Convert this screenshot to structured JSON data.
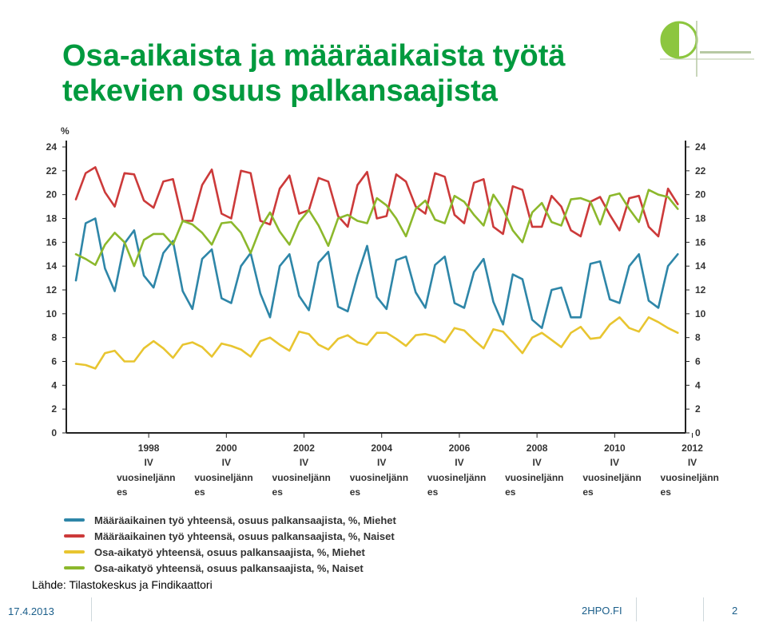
{
  "title_lines": [
    "Osa-aikaista ja määräaikaista työtä",
    "tekevien osuus palkansaajista"
  ],
  "source": "Lähde: Tilastokeskus ja Findikaattori",
  "footer": {
    "date": "17.4.2013",
    "site": "2HPO.FI",
    "page": "2"
  },
  "colors": {
    "title": "#009a3e",
    "blue": "#2e86a8",
    "red": "#cc3a3a",
    "yellow": "#e8c530",
    "green": "#8cb82c"
  },
  "chart_data": {
    "type": "line",
    "ylabel": "%",
    "ylim": [
      0,
      24
    ],
    "yticks": [
      0,
      2,
      4,
      6,
      8,
      10,
      12,
      14,
      16,
      18,
      20,
      22,
      24
    ],
    "grid": false,
    "x_tick_labels": [
      [
        "1998",
        "IV",
        "vuosineljänn",
        "es"
      ],
      [
        "2000",
        "IV",
        "vuosineljänn",
        "es"
      ],
      [
        "2002",
        "IV",
        "vuosineljänn",
        "es"
      ],
      [
        "2004",
        "IV",
        "vuosineljänn",
        "es"
      ],
      [
        "2006",
        "IV",
        "vuosineljänn",
        "es"
      ],
      [
        "2008",
        "IV",
        "vuosineljänn",
        "es"
      ],
      [
        "2010",
        "IV",
        "vuosineljänn",
        "es"
      ],
      [
        "2012",
        "IV",
        "vuosineljänn",
        "es"
      ]
    ],
    "x_tick_positions": [
      8,
      16,
      24,
      32,
      40,
      48,
      56,
      64
    ],
    "series": [
      {
        "name": "Määräaikainen työ yhteensä, osuus palkansaajista, %, Miehet",
        "color": "#2e86a8",
        "values": [
          12.8,
          17.6,
          18.0,
          13.8,
          11.9,
          15.9,
          17.0,
          13.2,
          12.2,
          15.1,
          16.1,
          11.9,
          10.4,
          14.6,
          15.4,
          11.3,
          10.9,
          14.0,
          15.1,
          11.7,
          9.7,
          14.0,
          15.0,
          11.5,
          10.3,
          14.3,
          15.2,
          10.6,
          10.2,
          13.2,
          15.7,
          11.4,
          10.4,
          14.5,
          14.8,
          11.8,
          10.5,
          14.1,
          14.8,
          10.9,
          10.5,
          13.5,
          14.6,
          11.0,
          9.1,
          13.3,
          12.9,
          9.5,
          8.8,
          12.0,
          12.2,
          9.7,
          9.7,
          14.2,
          14.4,
          11.2,
          10.9,
          14.0,
          15.0,
          11.1,
          10.5,
          14.0,
          15.0
        ]
      },
      {
        "name": "Määräaikainen työ yhteensä, osuus palkansaajista, %, Naiset",
        "color": "#cc3a3a",
        "values": [
          19.6,
          21.8,
          22.3,
          20.2,
          19.0,
          21.8,
          21.7,
          19.5,
          18.9,
          21.1,
          21.3,
          17.8,
          17.8,
          20.8,
          22.1,
          18.4,
          18.0,
          22.0,
          21.8,
          17.8,
          17.5,
          20.5,
          21.6,
          18.4,
          18.7,
          21.4,
          21.1,
          18.2,
          17.3,
          20.8,
          21.9,
          18.0,
          18.2,
          21.7,
          21.1,
          19.0,
          18.4,
          21.8,
          21.5,
          18.3,
          17.6,
          21.0,
          21.3,
          17.3,
          16.7,
          20.7,
          20.4,
          17.3,
          17.3,
          19.9,
          19.0,
          17.0,
          16.5,
          19.4,
          19.8,
          18.3,
          17.0,
          19.7,
          19.9,
          17.3,
          16.5,
          20.5,
          19.2
        ]
      },
      {
        "name": "Osa-aikatyö yhteensä, osuus palkansaajista, %, Miehet",
        "color": "#e8c530",
        "values": [
          5.8,
          5.7,
          5.4,
          6.7,
          6.9,
          6.0,
          6.0,
          7.1,
          7.7,
          7.1,
          6.3,
          7.4,
          7.6,
          7.2,
          6.4,
          7.5,
          7.3,
          7.0,
          6.4,
          7.7,
          8.0,
          7.4,
          6.9,
          8.5,
          8.3,
          7.4,
          7.0,
          7.9,
          8.2,
          7.6,
          7.4,
          8.4,
          8.4,
          7.9,
          7.3,
          8.2,
          8.3,
          8.1,
          7.6,
          8.8,
          8.6,
          7.8,
          7.1,
          8.7,
          8.5,
          7.6,
          6.7,
          8.0,
          8.4,
          7.8,
          7.2,
          8.4,
          8.9,
          7.9,
          8.0,
          9.1,
          9.7,
          8.8,
          8.5,
          9.7,
          9.3,
          8.8,
          8.4
        ]
      },
      {
        "name": "Osa-aikatyö yhteensä, osuus palkansaajista, %, Naiset",
        "color": "#8cb82c",
        "values": [
          15.0,
          14.6,
          14.1,
          15.8,
          16.8,
          16.0,
          14.0,
          16.2,
          16.7,
          16.7,
          15.8,
          17.8,
          17.5,
          16.8,
          15.8,
          17.6,
          17.7,
          16.8,
          15.1,
          17.2,
          18.5,
          16.9,
          15.8,
          17.7,
          18.7,
          17.4,
          15.7,
          18.0,
          18.3,
          17.8,
          17.6,
          19.7,
          19.1,
          18.0,
          16.5,
          18.8,
          19.5,
          17.9,
          17.6,
          19.9,
          19.4,
          18.3,
          17.4,
          20.0,
          18.8,
          17.0,
          16.0,
          18.5,
          19.3,
          17.7,
          17.4,
          19.6,
          19.7,
          19.4,
          17.5,
          19.9,
          20.1,
          18.8,
          17.7,
          20.4,
          20.0,
          19.8,
          18.8
        ]
      }
    ]
  }
}
